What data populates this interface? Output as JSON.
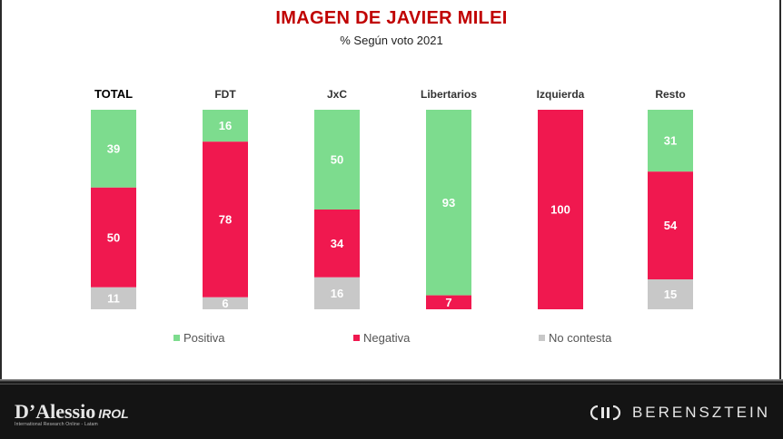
{
  "header": {
    "title": "IMAGEN DE JAVIER MILEI",
    "subtitle": "% Según voto 2021"
  },
  "colors": {
    "positiva": "#7ddc8e",
    "negativa": "#f0184f",
    "no_contesta": "#c8c8c8",
    "title": "#c00000"
  },
  "chart_data": {
    "type": "bar",
    "stacked": true,
    "orientation": "vertical",
    "categories": [
      "TOTAL",
      "FDT",
      "JxC",
      "Libertarios",
      "Izquierda",
      "Resto"
    ],
    "series": [
      {
        "name": "Positiva",
        "color": "#7ddc8e",
        "values": [
          39,
          16,
          50,
          93,
          0,
          31
        ]
      },
      {
        "name": "Negativa",
        "color": "#f0184f",
        "values": [
          50,
          78,
          34,
          7,
          100,
          54
        ]
      },
      {
        "name": "No contesta",
        "color": "#c8c8c8",
        "values": [
          11,
          6,
          16,
          0,
          0,
          15
        ]
      }
    ],
    "ylim": [
      0,
      100
    ],
    "grid": false,
    "legend": "bottom",
    "data_labels": true
  },
  "legend": {
    "positiva": "Positiva",
    "negativa": "Negativa",
    "no_contesta": "No contesta"
  },
  "footer": {
    "brand_left": "D’Alessio",
    "brand_left_suffix": "IROL",
    "brand_left_tagline": "International Research Online - Latam",
    "brand_right": "BERENSZTEIN"
  }
}
